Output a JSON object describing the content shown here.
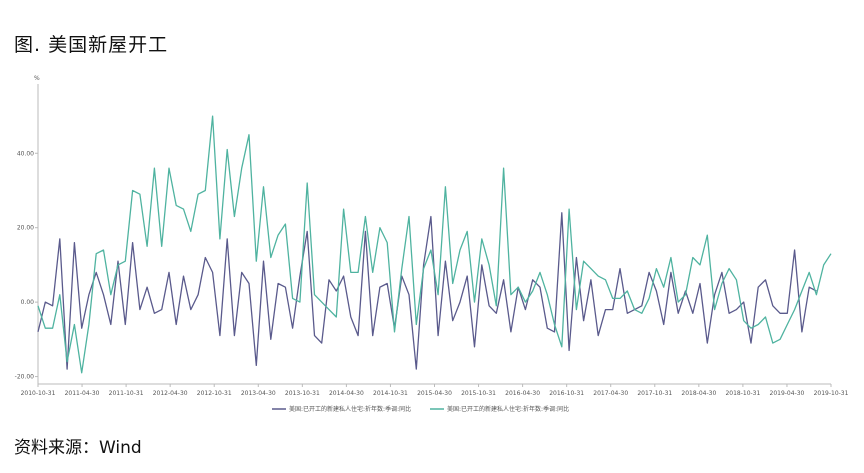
{
  "figure_title": "图. 美国新屋开工",
  "source": "资料来源：Wind",
  "chart_data": {
    "type": "line",
    "ylabel": "%",
    "ylim": [
      -22,
      57
    ],
    "yticks": [
      -20,
      0,
      20,
      40
    ],
    "ytick_labels": [
      "-20.00",
      "0.00",
      "20.00",
      "40.00"
    ],
    "xtick_labels": [
      "2010-10-31",
      "2011-04-30",
      "2011-10-31",
      "2012-04-30",
      "2012-10-31",
      "2013-04-30",
      "2013-10-31",
      "2014-04-30",
      "2014-10-31",
      "2015-04-30",
      "2015-10-31",
      "2016-04-30",
      "2016-10-31",
      "2017-04-30",
      "2017-10-31",
      "2018-04-30",
      "2018-10-31",
      "2019-04-30",
      "2019-10-31"
    ],
    "grid": false,
    "legend_position": "bottom",
    "series": [
      {
        "name": "美国:已开工的新建私人住宅:折年数:季调:同比",
        "color": "#5a5a8c",
        "values": [
          -8,
          0,
          -1,
          17,
          -18,
          16,
          -7,
          2,
          8,
          2,
          -6,
          11,
          -6,
          16,
          -2,
          4,
          -3,
          -2,
          8,
          -6,
          7,
          -2,
          2,
          12,
          8,
          -9,
          17,
          -9,
          8,
          5,
          -17,
          11,
          -10,
          5,
          4,
          -7,
          7,
          19,
          -9,
          -11,
          6,
          3,
          7,
          -4,
          -9,
          19,
          -9,
          4,
          5,
          -7,
          7,
          2,
          -18,
          10,
          23,
          -9,
          11,
          -5,
          0,
          7,
          -12,
          10,
          -1,
          -3,
          6,
          -8,
          4,
          -2,
          6,
          4,
          -7,
          -8,
          24,
          -13,
          12,
          -5,
          6,
          -9,
          -2,
          -2,
          9,
          -3,
          -2,
          -1,
          8,
          3,
          -6,
          8,
          -3,
          3,
          -3,
          5,
          -11,
          2,
          8,
          -3,
          -2,
          0,
          -11,
          4,
          6,
          -1,
          -3,
          -3,
          14,
          -8,
          4,
          3
        ]
      },
      {
        "name": "美国:已开工的新建私人住宅:折年数:季调:同比",
        "color": "#4fb3a0",
        "values": [
          -1,
          -7,
          -7,
          2,
          -16,
          -6,
          -19,
          -6,
          13,
          14,
          2,
          10,
          11,
          30,
          29,
          15,
          36,
          15,
          36,
          26,
          25,
          19,
          29,
          30,
          50,
          17,
          41,
          23,
          36,
          45,
          11,
          31,
          12,
          18,
          21,
          1,
          0,
          32,
          2,
          0,
          -2,
          -4,
          25,
          8,
          8,
          23,
          8,
          20,
          16,
          -8,
          9,
          23,
          -6,
          9,
          14,
          2,
          31,
          5,
          14,
          19,
          0,
          17,
          10,
          -1,
          36,
          2,
          4,
          0,
          3,
          8,
          2,
          -6,
          -12,
          25,
          -2,
          11,
          9,
          7,
          6,
          1,
          1,
          3,
          -2,
          -3,
          1,
          9,
          4,
          12,
          0,
          2,
          12,
          10,
          18,
          -2,
          5,
          9,
          6,
          -5,
          -7,
          -6,
          -4,
          -11,
          -10,
          -6,
          -2,
          3,
          8,
          2,
          10,
          13
        ]
      }
    ]
  }
}
